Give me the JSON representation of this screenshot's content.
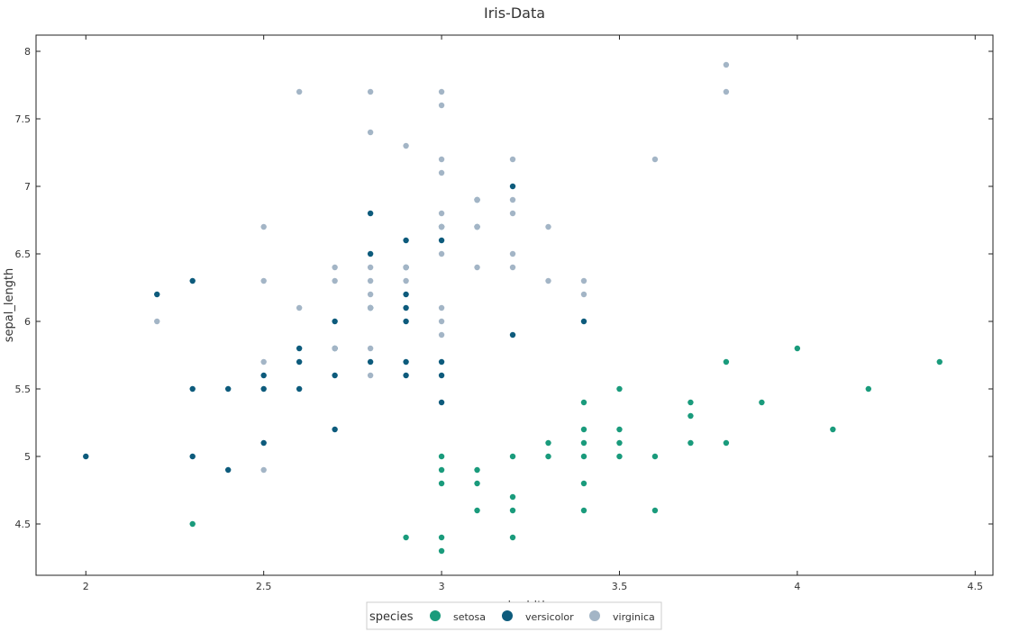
{
  "chart_data": {
    "type": "scatter",
    "title": "Iris-Data",
    "xlabel": "sepal_width",
    "ylabel": "sepal_length",
    "xlim": [
      1.86,
      4.55
    ],
    "ylim": [
      4.12,
      8.12
    ],
    "x_ticks": [
      "2",
      "2.5",
      "3",
      "3.5",
      "4",
      "4.5"
    ],
    "y_ticks": [
      "4.5",
      "5",
      "5.5",
      "6",
      "6.5",
      "7",
      "7.5",
      "8"
    ],
    "legend": {
      "title": "species",
      "position": "bottom-center"
    },
    "series": [
      {
        "name": "setosa",
        "color": "#1a9b7c",
        "points": [
          [
            2.3,
            4.5
          ],
          [
            2.9,
            4.4
          ],
          [
            3.0,
            4.4
          ],
          [
            3.0,
            4.3
          ],
          [
            3.0,
            4.8
          ],
          [
            3.0,
            4.9
          ],
          [
            3.0,
            5.0
          ],
          [
            3.1,
            4.9
          ],
          [
            3.1,
            4.8
          ],
          [
            3.1,
            4.6
          ],
          [
            3.2,
            4.7
          ],
          [
            3.2,
            4.6
          ],
          [
            3.2,
            4.4
          ],
          [
            3.2,
            5.0
          ],
          [
            3.3,
            5.1
          ],
          [
            3.3,
            5.0
          ],
          [
            3.4,
            5.4
          ],
          [
            3.4,
            5.2
          ],
          [
            3.4,
            5.1
          ],
          [
            3.4,
            5.0
          ],
          [
            3.4,
            4.8
          ],
          [
            3.4,
            4.6
          ],
          [
            3.5,
            5.5
          ],
          [
            3.5,
            5.2
          ],
          [
            3.5,
            5.1
          ],
          [
            3.5,
            5.0
          ],
          [
            3.6,
            5.0
          ],
          [
            3.6,
            4.6
          ],
          [
            3.7,
            5.4
          ],
          [
            3.7,
            5.3
          ],
          [
            3.7,
            5.1
          ],
          [
            3.8,
            5.7
          ],
          [
            3.8,
            5.1
          ],
          [
            3.9,
            5.4
          ],
          [
            4.0,
            5.8
          ],
          [
            4.1,
            5.2
          ],
          [
            4.2,
            5.5
          ],
          [
            4.4,
            5.7
          ]
        ]
      },
      {
        "name": "versicolor",
        "color": "#0d5b7c",
        "points": [
          [
            2.0,
            5.0
          ],
          [
            2.2,
            6.2
          ],
          [
            2.3,
            6.3
          ],
          [
            2.3,
            5.5
          ],
          [
            2.3,
            5.0
          ],
          [
            2.4,
            5.5
          ],
          [
            2.4,
            4.9
          ],
          [
            2.5,
            5.6
          ],
          [
            2.5,
            5.5
          ],
          [
            2.5,
            5.1
          ],
          [
            2.6,
            5.8
          ],
          [
            2.6,
            5.7
          ],
          [
            2.6,
            5.5
          ],
          [
            2.7,
            6.0
          ],
          [
            2.7,
            5.8
          ],
          [
            2.7,
            5.6
          ],
          [
            2.7,
            5.2
          ],
          [
            2.8,
            6.8
          ],
          [
            2.8,
            6.5
          ],
          [
            2.8,
            6.1
          ],
          [
            2.8,
            5.7
          ],
          [
            2.9,
            6.6
          ],
          [
            2.9,
            6.4
          ],
          [
            2.9,
            6.2
          ],
          [
            2.9,
            6.1
          ],
          [
            2.9,
            6.0
          ],
          [
            2.9,
            5.7
          ],
          [
            2.9,
            5.6
          ],
          [
            3.0,
            6.7
          ],
          [
            3.0,
            6.6
          ],
          [
            3.0,
            5.7
          ],
          [
            3.0,
            5.6
          ],
          [
            3.0,
            5.4
          ],
          [
            3.1,
            6.9
          ],
          [
            3.1,
            6.7
          ],
          [
            3.2,
            7.0
          ],
          [
            3.2,
            5.9
          ],
          [
            3.4,
            6.0
          ]
        ]
      },
      {
        "name": "virginica",
        "color": "#a3b5c6",
        "points": [
          [
            2.2,
            6.0
          ],
          [
            2.5,
            6.7
          ],
          [
            2.5,
            6.3
          ],
          [
            2.5,
            5.7
          ],
          [
            2.5,
            4.9
          ],
          [
            2.6,
            7.7
          ],
          [
            2.6,
            6.1
          ],
          [
            2.7,
            6.4
          ],
          [
            2.7,
            6.3
          ],
          [
            2.7,
            5.8
          ],
          [
            2.8,
            7.7
          ],
          [
            2.8,
            7.4
          ],
          [
            2.8,
            6.4
          ],
          [
            2.8,
            6.3
          ],
          [
            2.8,
            6.2
          ],
          [
            2.8,
            6.1
          ],
          [
            2.8,
            5.8
          ],
          [
            2.8,
            5.6
          ],
          [
            2.9,
            7.3
          ],
          [
            2.9,
            6.4
          ],
          [
            2.9,
            6.3
          ],
          [
            3.0,
            7.7
          ],
          [
            3.0,
            7.6
          ],
          [
            3.0,
            7.2
          ],
          [
            3.0,
            7.1
          ],
          [
            3.0,
            6.8
          ],
          [
            3.0,
            6.7
          ],
          [
            3.0,
            6.5
          ],
          [
            3.0,
            6.1
          ],
          [
            3.0,
            6.0
          ],
          [
            3.0,
            5.9
          ],
          [
            3.1,
            6.9
          ],
          [
            3.1,
            6.7
          ],
          [
            3.1,
            6.4
          ],
          [
            3.2,
            7.2
          ],
          [
            3.2,
            6.9
          ],
          [
            3.2,
            6.8
          ],
          [
            3.2,
            6.5
          ],
          [
            3.2,
            6.4
          ],
          [
            3.3,
            6.7
          ],
          [
            3.3,
            6.3
          ],
          [
            3.4,
            6.3
          ],
          [
            3.4,
            6.2
          ],
          [
            3.6,
            7.2
          ],
          [
            3.8,
            7.9
          ],
          [
            3.8,
            7.7
          ]
        ]
      }
    ]
  }
}
